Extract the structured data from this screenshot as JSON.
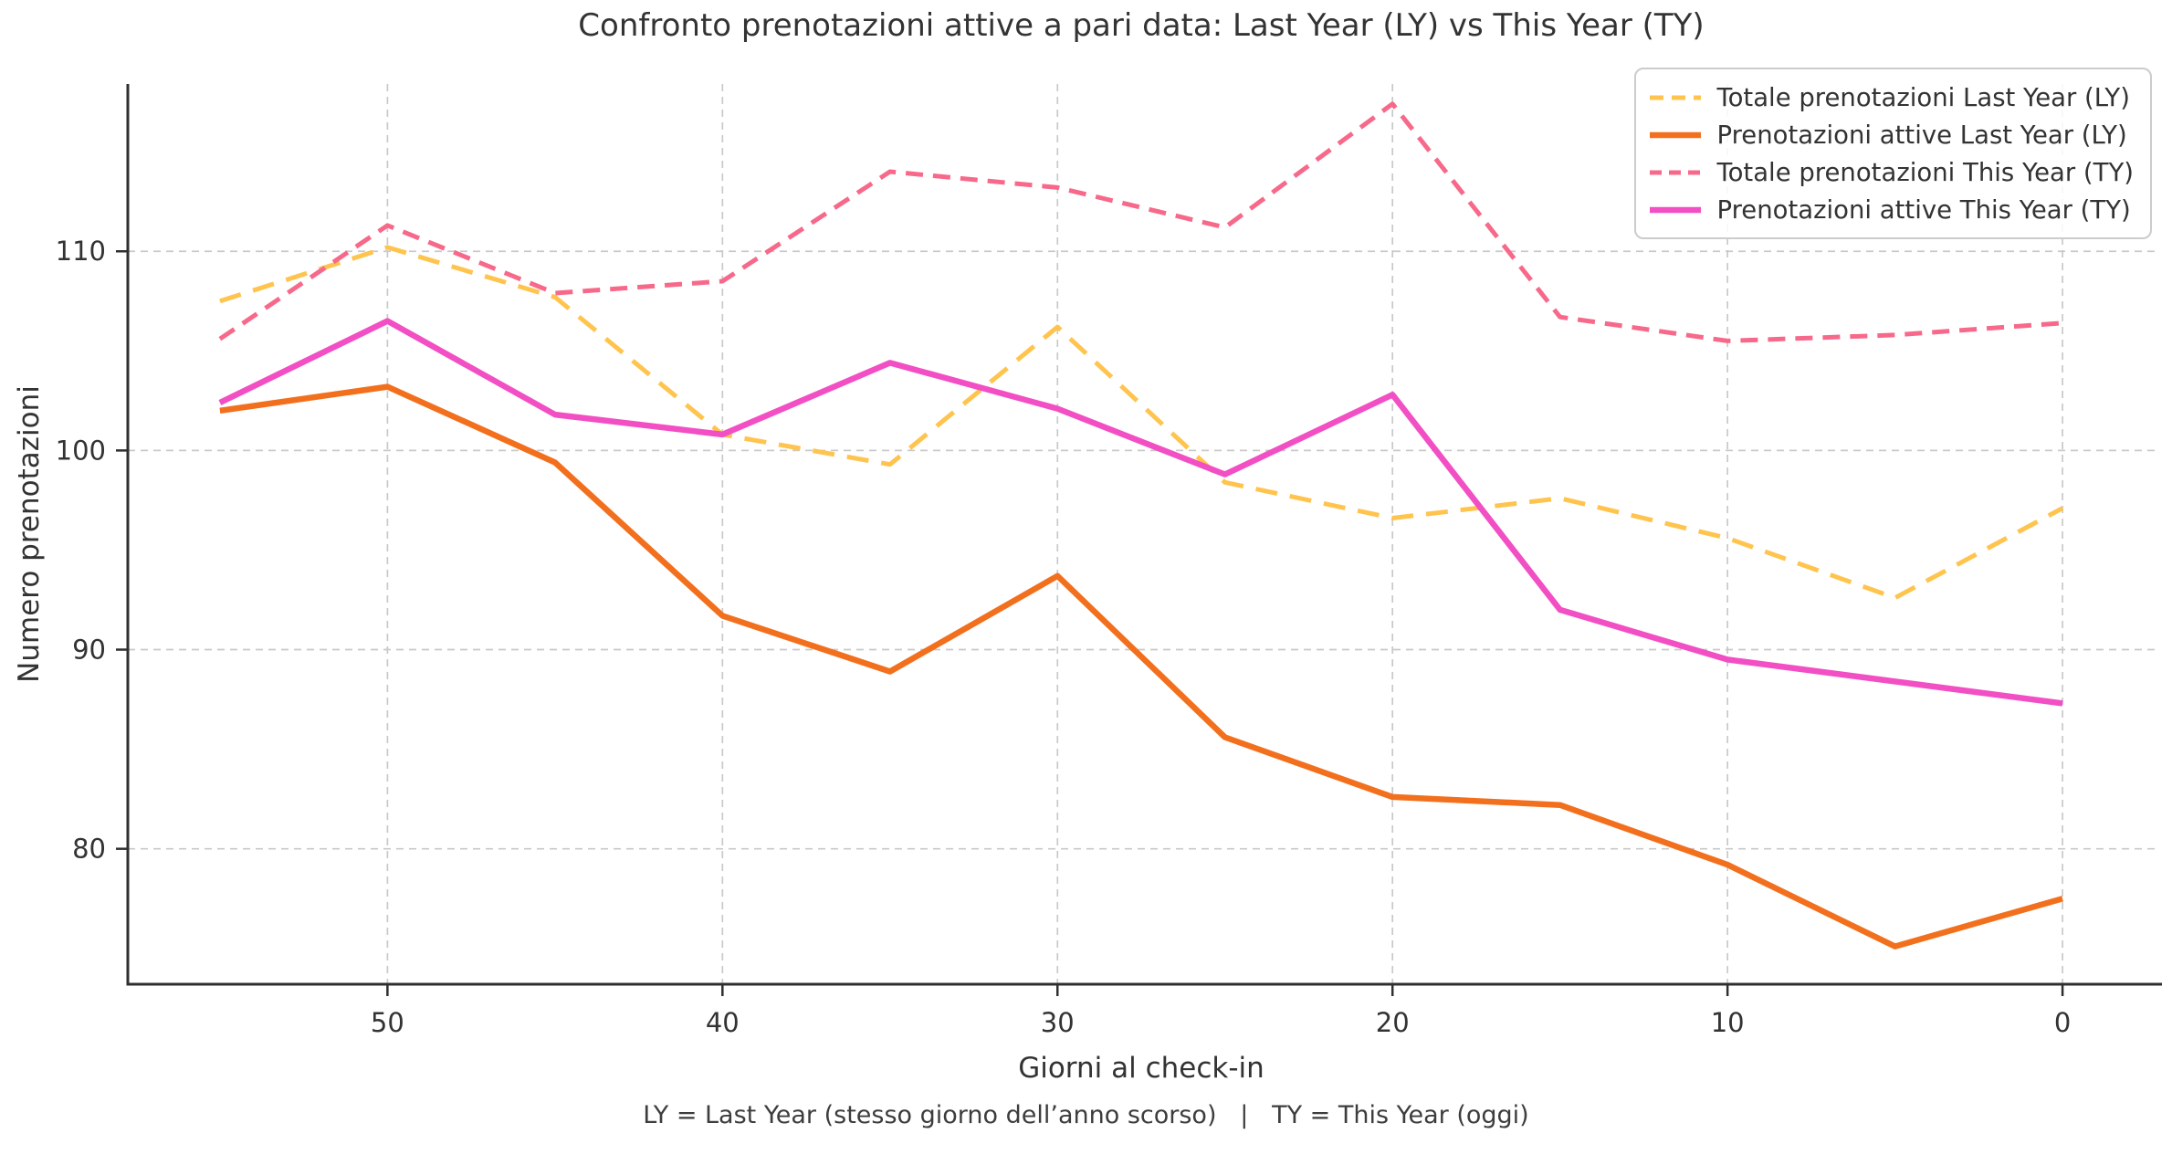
{
  "figure": {
    "background": "#ffffff",
    "text_color": "#333333",
    "footnote": "LY = Last Year (stesso giorno dell’anno scorso)   |   TY = This Year (oggi)"
  },
  "chart_data": {
    "type": "line",
    "title": "Confronto prenotazioni attive a pari data: Last Year (LY) vs This Year (TY)",
    "xlabel": "Giorni al check-in",
    "ylabel": "Numero prenotazioni",
    "x": [
      55,
      50,
      45,
      40,
      35,
      30,
      25,
      20,
      15,
      10,
      5,
      0
    ],
    "x_axis_reversed": true,
    "x_ticks": [
      50,
      40,
      30,
      20,
      10,
      0
    ],
    "y_ticks": [
      80,
      90,
      100,
      110
    ],
    "xlim": [
      57.75,
      -2.75
    ],
    "ylim": [
      73.2,
      118.4
    ],
    "grid": true,
    "grid_color": "#c9c9c9",
    "spine_color": "#2f2f2f",
    "tick_label_color": "#333333",
    "legend_position": "upper right",
    "series": [
      {
        "name": "Totale prenotazioni Last Year (LY)",
        "color": "#FFC44E",
        "style": "dashed",
        "width": 5,
        "dash": "24 14",
        "legend_dash": "15 9",
        "values": [
          107.5,
          110.2,
          107.7,
          100.8,
          99.3,
          106.2,
          98.4,
          96.6,
          97.6,
          95.6,
          92.6,
          97.1
        ]
      },
      {
        "name": "Prenotazioni attive Last Year (LY)",
        "color": "#F2701D",
        "style": "solid",
        "width": 6.5,
        "dash": "",
        "legend_dash": "",
        "values": [
          102.0,
          103.2,
          99.4,
          91.7,
          88.9,
          93.7,
          85.6,
          82.6,
          82.2,
          79.2,
          75.1,
          77.5
        ]
      },
      {
        "name": "Totale prenotazioni This Year (TY)",
        "color": "#F7698A",
        "style": "dashed",
        "width": 5,
        "dash": "19 11",
        "legend_dash": "13 8",
        "values": [
          105.6,
          111.3,
          107.9,
          108.5,
          114.0,
          113.2,
          111.2,
          117.4,
          106.7,
          105.5,
          105.8,
          106.4
        ]
      },
      {
        "name": "Prenotazioni attive This Year (TY)",
        "color": "#F24FC4",
        "style": "solid",
        "width": 6.5,
        "dash": "",
        "legend_dash": "",
        "values": [
          102.4,
          106.5,
          101.8,
          100.8,
          104.4,
          102.1,
          98.8,
          102.8,
          92.0,
          89.5,
          88.4,
          87.3
        ]
      }
    ]
  }
}
